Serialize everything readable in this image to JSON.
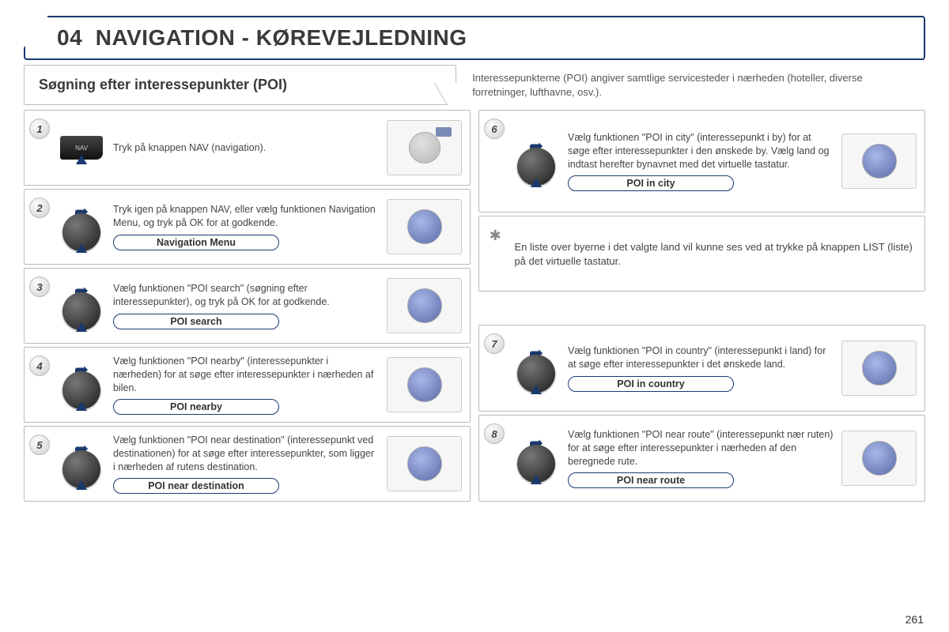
{
  "header": {
    "section_number": "04",
    "title": "NAVIGATION - KØREVEJLEDNING"
  },
  "sub": {
    "heading": "Søgning efter interessepunkter (POI)",
    "intro": "Interessepunkterne (POI) angiver samtlige servicesteder i nærheden (hoteller, diverse forretninger, lufthavne, osv.)."
  },
  "left": [
    {
      "num": "1",
      "control": "nav",
      "text": "Tryk på knappen NAV (navigation).",
      "label": null,
      "console": "nav"
    },
    {
      "num": "2",
      "control": "dial",
      "text": "Tryk igen på knappen NAV, eller vælg funktionen Navigation Menu, og tryk på OK for at godkende.",
      "label": "Navigation Menu",
      "console": "dial"
    },
    {
      "num": "3",
      "control": "dial",
      "text": "Vælg funktionen \"POI search\" (søgning efter interessepunkter), og tryk på OK for at godkende.",
      "label": "POI search",
      "console": "dial"
    },
    {
      "num": "4",
      "control": "dial",
      "text": "Vælg funktionen \"POI nearby\" (interessepunkter i nærheden) for at søge efter interessepunkter i nærheden af bilen.",
      "label": "POI nearby",
      "console": "dial"
    },
    {
      "num": "5",
      "control": "dial",
      "text": "Vælg funktionen \"POI near destination\" (interessepunkt ved destinationen) for at søge efter interessepunkter, som ligger i nærheden af rutens destination.",
      "label": "POI near destination",
      "console": "dial"
    }
  ],
  "right_top": {
    "num": "6",
    "control": "dial",
    "text": "Vælg funktionen \"POI in city\" (interessepunkt i by) for at søge efter interessepunkter i den ønskede by. Vælg land og indtast herefter bynavnet med det virtuelle tastatur.",
    "label": "POI in city",
    "console": "dial"
  },
  "note": "En liste over byerne i det valgte land vil kunne ses ved at trykke på knappen LIST (liste) på det virtuelle tastatur.",
  "right_bottom": [
    {
      "num": "7",
      "control": "dial",
      "text": "Vælg funktionen \"POI in country\" (interessepunkt i land) for at søge efter interessepunkter i det ønskede land.",
      "label": "POI in country",
      "console": "dial"
    },
    {
      "num": "8",
      "control": "dial",
      "text": "Vælg funktionen \"POI near route\" (interessepunkt nær ruten) for at søge efter interessepunkter i nærheden af den beregnede rute.",
      "label": "POI near route",
      "console": "dial"
    }
  ],
  "page_number": "261",
  "colors": {
    "accent": "#1a3a6e",
    "border": "#bbbbbb",
    "text": "#3a3a3a"
  }
}
